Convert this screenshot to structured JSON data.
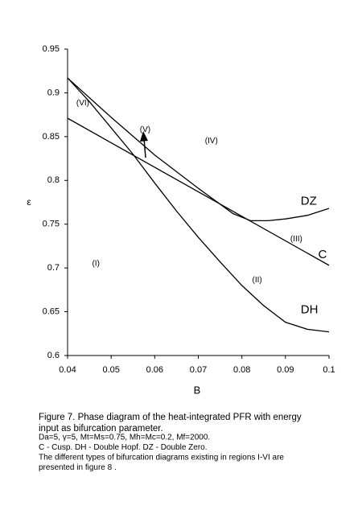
{
  "chart_data": {
    "type": "line",
    "x_label": "B",
    "y_label": "ε",
    "xlim": [
      0.04,
      0.1
    ],
    "xticks": [
      0.04,
      0.05,
      0.06,
      0.07,
      0.08,
      0.09,
      0.1
    ],
    "ylim": [
      0.6,
      0.95
    ],
    "yticks": [
      0.6,
      0.65,
      0.7,
      0.75,
      0.8,
      0.85,
      0.9,
      0.95
    ],
    "grid": false,
    "series": [
      {
        "name": "C",
        "color": "#000000",
        "label_at": [
          0.0975,
          0.715
        ],
        "x": [
          0.04,
          0.1
        ],
        "values": [
          0.871,
          0.703
        ]
      },
      {
        "name": "DZ",
        "color": "#000000",
        "label_at": [
          0.0935,
          0.776
        ],
        "x": [
          0.04,
          0.05,
          0.06,
          0.07,
          0.078,
          0.082,
          0.086,
          0.09,
          0.095,
          0.1
        ],
        "values": [
          0.917,
          0.872,
          0.829,
          0.791,
          0.762,
          0.754,
          0.754,
          0.756,
          0.76,
          0.768
        ]
      },
      {
        "name": "DH",
        "color": "#000000",
        "label_at": [
          0.0935,
          0.652
        ],
        "x": [
          0.04,
          0.045,
          0.05,
          0.055,
          0.06,
          0.065,
          0.07,
          0.075,
          0.08,
          0.085,
          0.09,
          0.095,
          0.1
        ],
        "values": [
          0.917,
          0.89,
          0.86,
          0.83,
          0.797,
          0.765,
          0.735,
          0.707,
          0.68,
          0.657,
          0.638,
          0.63,
          0.627
        ]
      }
    ],
    "annotations": [
      {
        "text": "(I)",
        "x": 0.0465,
        "y": 0.705
      },
      {
        "text": "(II)",
        "x": 0.0835,
        "y": 0.686
      },
      {
        "text": "(III)",
        "x": 0.0925,
        "y": 0.733
      },
      {
        "text": "(IV)",
        "x": 0.073,
        "y": 0.845
      },
      {
        "text": "(V)",
        "x": 0.0578,
        "y": 0.858
      },
      {
        "text": "(VI)",
        "x": 0.0435,
        "y": 0.888
      }
    ]
  },
  "caption": {
    "lines": [
      "Figure 7.  Phase diagram of the heat-integrated PFR with energy",
      "input as bifurcation parameter.",
      "Da=5, γ=5, Mt=Ms=0.75, Mh=Mc=0.2, Mf=2000.",
      "C - Cusp. DH - Double Hopf. DZ - Double Zero.",
      "The different types of bifurcation diagrams existing in regions I-VI are",
      "presented in figure 8  ."
    ]
  }
}
